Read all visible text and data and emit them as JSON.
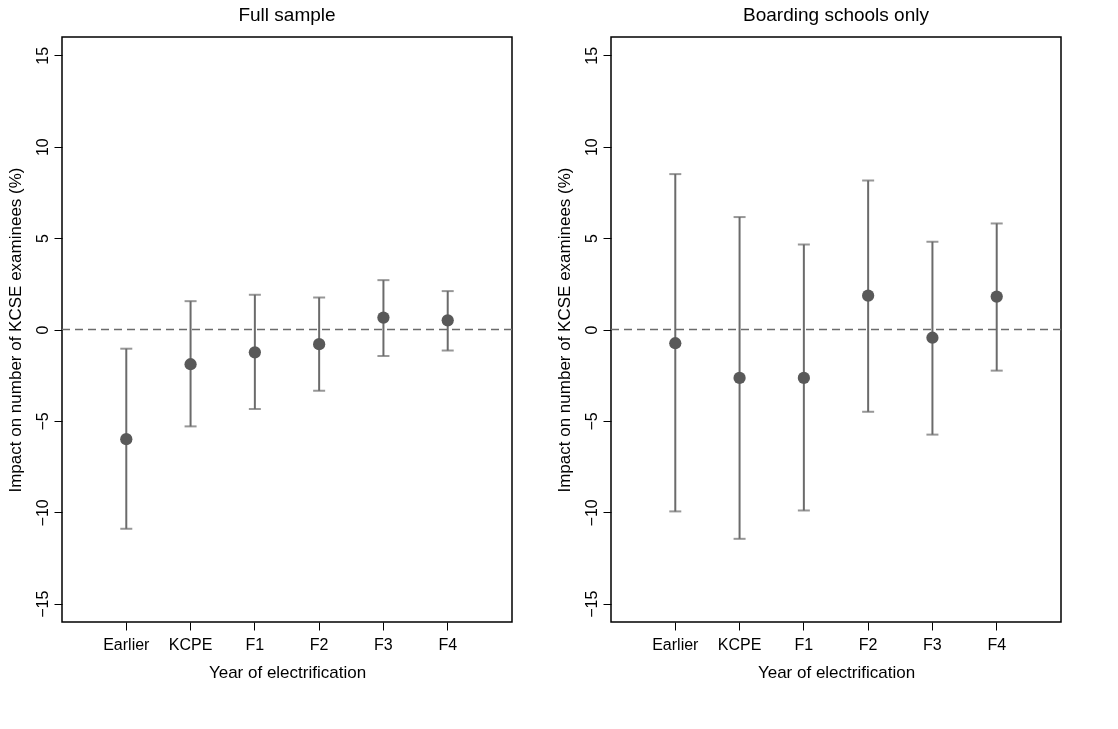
{
  "chart_data": [
    {
      "type": "scatter",
      "title": "Full sample",
      "xlabel": "Year of electrification",
      "ylabel": "Impact on number of KCSE examinees (%)",
      "categories": [
        "Earlier",
        "KCPE",
        "F1",
        "F2",
        "F3",
        "F4"
      ],
      "series": [
        {
          "color": "#595959",
          "values": [
            -6.0,
            -1.9,
            -1.25,
            -0.8,
            0.65,
            0.5
          ],
          "errors": [
            [
              -10.9,
              -1.05
            ],
            [
              -5.3,
              1.55
            ],
            [
              -4.35,
              1.9
            ],
            [
              -3.35,
              1.75
            ],
            [
              -1.45,
              2.7
            ],
            [
              -1.15,
              2.1
            ]
          ]
        }
      ],
      "ylim": [
        -16,
        16
      ],
      "yticks": [
        -15,
        -10,
        -5,
        0,
        5,
        10,
        15
      ],
      "grid": false,
      "marker": "circle",
      "ref_lines": [
        {
          "axis": "y",
          "value": 0,
          "color": "#6b6b6b",
          "line_style": "dashed"
        }
      ]
    },
    {
      "type": "scatter",
      "title": "Boarding schools only",
      "xlabel": "Year of electrification",
      "ylabel": "Impact on number of KCSE examinees (%)",
      "categories": [
        "Earlier",
        "KCPE",
        "F1",
        "F2",
        "F3",
        "F4"
      ],
      "series": [
        {
          "color": "#595959",
          "values": [
            -0.75,
            -2.65,
            -2.65,
            1.85,
            -0.45,
            1.8
          ],
          "errors": [
            [
              -9.95,
              8.5
            ],
            [
              -11.45,
              6.15
            ],
            [
              -9.9,
              4.65
            ],
            [
              -4.5,
              8.15
            ],
            [
              -5.75,
              4.8
            ],
            [
              -2.25,
              5.8
            ]
          ]
        }
      ],
      "ylim": [
        -16,
        16
      ],
      "yticks": [
        -15,
        -10,
        -5,
        0,
        5,
        10,
        15
      ],
      "grid": false,
      "marker": "circle",
      "ref_lines": [
        {
          "axis": "y",
          "value": 0,
          "color": "#6b6b6b",
          "line_style": "dashed"
        }
      ]
    }
  ]
}
